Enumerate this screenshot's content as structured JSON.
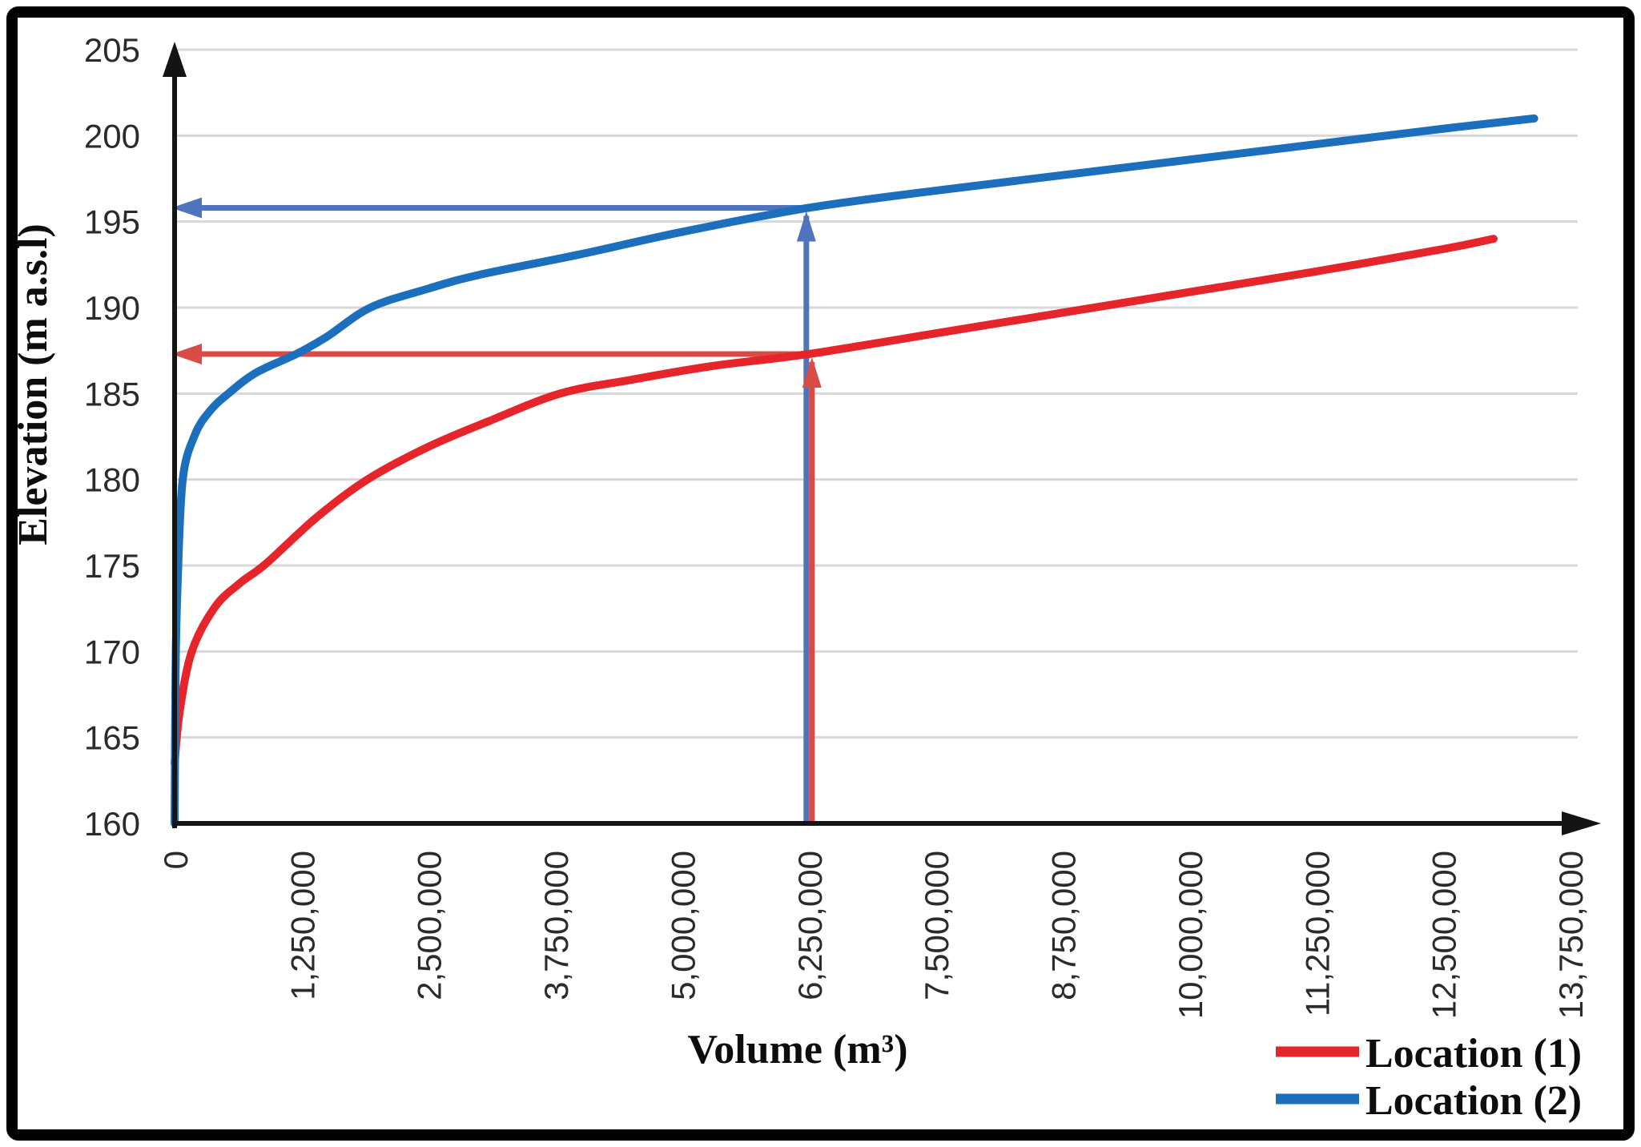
{
  "chart_data": {
    "type": "line",
    "title": "",
    "xlabel": "Volume (m³)",
    "ylabel": "Elevation (m a.s.l)",
    "xlim": [
      0,
      13750000
    ],
    "ylim": [
      160,
      205
    ],
    "grid": "horizontal-only",
    "legend_position": "bottom-right",
    "x_tick_values": [
      0,
      1250000,
      2500000,
      3750000,
      5000000,
      6250000,
      7500000,
      8750000,
      10000000,
      11250000,
      12500000,
      13750000
    ],
    "x_tick_labels": [
      "0",
      "1,250,000",
      "2,500,000",
      "3,750,000",
      "5,000,000",
      "6,250,000",
      "7,500,000",
      "8,750,000",
      "10,000,000",
      "11,250,000",
      "12,500,000",
      "13,750,000"
    ],
    "y_tick_values": [
      160,
      165,
      170,
      175,
      180,
      185,
      190,
      195,
      200,
      205
    ],
    "y_tick_labels": [
      "160",
      "165",
      "170",
      "175",
      "180",
      "185",
      "190",
      "195",
      "200",
      "205"
    ],
    "series": [
      {
        "name": "Location (1)",
        "color": "#e6252b",
        "points": [
          [
            0,
            163.5
          ],
          [
            50000,
            166.5
          ],
          [
            170000,
            170
          ],
          [
            400000,
            172.6
          ],
          [
            650000,
            174
          ],
          [
            900000,
            175.1
          ],
          [
            1400000,
            177.8
          ],
          [
            1900000,
            180
          ],
          [
            2500000,
            181.9
          ],
          [
            3100000,
            183.4
          ],
          [
            3800000,
            185
          ],
          [
            4500000,
            185.8
          ],
          [
            5300000,
            186.6
          ],
          [
            6250000,
            187.3
          ],
          [
            7500000,
            188.5
          ],
          [
            8750000,
            189.7
          ],
          [
            10000000,
            190.9
          ],
          [
            11250000,
            192.1
          ],
          [
            12500000,
            193.4
          ],
          [
            13000000,
            194
          ]
        ]
      },
      {
        "name": "Location (2)",
        "color": "#1b6fbd",
        "points": [
          [
            0,
            160
          ],
          [
            10000,
            169
          ],
          [
            30000,
            174
          ],
          [
            80000,
            180
          ],
          [
            200000,
            182.6
          ],
          [
            350000,
            184
          ],
          [
            530000,
            185
          ],
          [
            800000,
            186.2
          ],
          [
            1200000,
            187.3
          ],
          [
            1500000,
            188.3
          ],
          [
            1930000,
            190
          ],
          [
            2500000,
            191.1
          ],
          [
            3000000,
            191.9
          ],
          [
            4000000,
            193.1
          ],
          [
            5000000,
            194.4
          ],
          [
            6250000,
            195.8
          ],
          [
            7500000,
            196.8
          ],
          [
            8750000,
            197.7
          ],
          [
            10000000,
            198.6
          ],
          [
            11250000,
            199.5
          ],
          [
            12500000,
            200.4
          ],
          [
            13400000,
            201
          ]
        ]
      }
    ],
    "annotations": {
      "at_volume": 6250000,
      "location1_elevation": 187.3,
      "location2_elevation": 195.8,
      "location1_arrow_color": "#d84c45",
      "location2_arrow_color": "#4f74bd"
    }
  },
  "legend": {
    "items": [
      {
        "label": "Location (1)",
        "color": "#e6252b"
      },
      {
        "label": "Location (2)",
        "color": "#1b6fbd"
      }
    ]
  }
}
